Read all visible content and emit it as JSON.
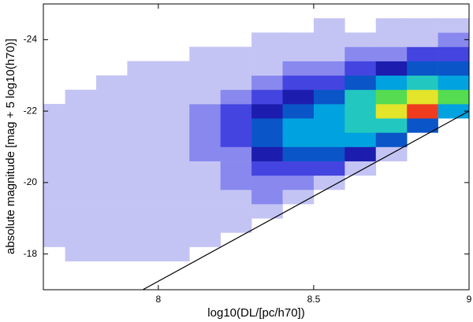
{
  "chart_data": {
    "type": "heatmap",
    "xlabel": "log10(DL/[pc/h70])",
    "ylabel": "absolute magnitude [mag + 5 log10(h70)]",
    "xlim": [
      7.63,
      9
    ],
    "ylim": [
      -17,
      -25
    ],
    "xticks": [
      8,
      8.5,
      9
    ],
    "yticks": [
      -24,
      -22,
      -20,
      -18
    ],
    "xbins": [
      7.6,
      7.7,
      7.8,
      7.9,
      8.0,
      8.1,
      8.2,
      8.3,
      8.4,
      8.5,
      8.6,
      8.7,
      8.8,
      8.9,
      9.0
    ],
    "ybins": [
      -17,
      -17.4,
      -17.8,
      -18.2,
      -18.6,
      -19,
      -19.4,
      -19.8,
      -20.2,
      -20.6,
      -21,
      -21.4,
      -21.8,
      -22.2,
      -22.6,
      -23,
      -23.4,
      -23.8,
      -24.2,
      -24.6,
      -25
    ],
    "z": [
      [
        0,
        0,
        0,
        0,
        0,
        0,
        0,
        0,
        0,
        0,
        0,
        0,
        0,
        0
      ],
      [
        0,
        0,
        0,
        0,
        0,
        0,
        0,
        0,
        0,
        0,
        0,
        0,
        0,
        0
      ],
      [
        0,
        1,
        1,
        1,
        1,
        0,
        0,
        0,
        0,
        0,
        0,
        0,
        0,
        0
      ],
      [
        1,
        1,
        1,
        1,
        1,
        1,
        0,
        0,
        0,
        0,
        0,
        0,
        0,
        0
      ],
      [
        1,
        1,
        1,
        1,
        1,
        1,
        1,
        0,
        0,
        0,
        0,
        0,
        0,
        0
      ],
      [
        1,
        1,
        1,
        1,
        1,
        1,
        1,
        1,
        0,
        0,
        0,
        0,
        0,
        0
      ],
      [
        1,
        1,
        1,
        1,
        1,
        1,
        1,
        2,
        1,
        0,
        0,
        0,
        0,
        0
      ],
      [
        1,
        1,
        1,
        1,
        1,
        1,
        2,
        2,
        2,
        1,
        0,
        0,
        0,
        0
      ],
      [
        1,
        1,
        1,
        1,
        1,
        1,
        2,
        3,
        3,
        3,
        1,
        0,
        0,
        0
      ],
      [
        1,
        1,
        1,
        1,
        1,
        2,
        2,
        4,
        5,
        5,
        4,
        1,
        0,
        0
      ],
      [
        1,
        1,
        1,
        1,
        1,
        2,
        3,
        5,
        6,
        6,
        6,
        5,
        0,
        0
      ],
      [
        1,
        1,
        1,
        1,
        1,
        2,
        3,
        5,
        6,
        6,
        7,
        7,
        5,
        0
      ],
      [
        1,
        1,
        1,
        1,
        1,
        2,
        3,
        4,
        5,
        6,
        7,
        9,
        10,
        6
      ],
      [
        0,
        1,
        1,
        1,
        1,
        1,
        2,
        3,
        4,
        5,
        7,
        8,
        9,
        8
      ],
      [
        0,
        0,
        1,
        1,
        1,
        1,
        1,
        2,
        3,
        3,
        5,
        6,
        7,
        6
      ],
      [
        0,
        0,
        0,
        1,
        1,
        1,
        1,
        1,
        2,
        2,
        3,
        4,
        5,
        5
      ],
      [
        0,
        0,
        0,
        0,
        0,
        1,
        1,
        1,
        1,
        1,
        2,
        2,
        3,
        3
      ],
      [
        0,
        0,
        0,
        0,
        0,
        0,
        0,
        1,
        1,
        1,
        1,
        1,
        1,
        2
      ],
      [
        0,
        0,
        0,
        0,
        0,
        0,
        0,
        0,
        0,
        1,
        0,
        1,
        1,
        1
      ],
      [
        0,
        0,
        0,
        0,
        0,
        0,
        0,
        0,
        0,
        0,
        0,
        0,
        0,
        0
      ]
    ],
    "colorscale": [
      "#ffffff",
      "#c4c4f4",
      "#8888ee",
      "#4444e0",
      "#1c1cae",
      "#0a55c8",
      "#00a2e0",
      "#22c8c0",
      "#55dc50",
      "#e4e42a",
      "#f03c1e"
    ],
    "limit_line": {
      "x": [
        7.95,
        9
      ],
      "y": [
        -17,
        -22
      ],
      "color": "#000000"
    }
  }
}
